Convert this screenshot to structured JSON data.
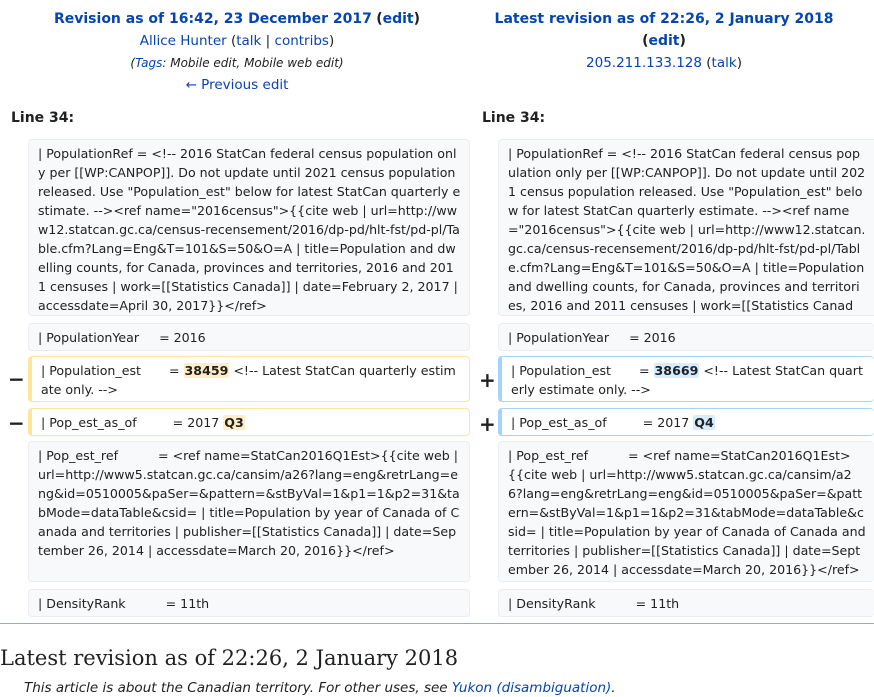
{
  "left": {
    "title": "Revision as of 16:42, 23 December 2017",
    "edit": "edit",
    "user": "Allice Hunter",
    "talk": "talk",
    "contribs": "contribs",
    "tags_label": "Tags",
    "tags": "Mobile edit, Mobile web edit",
    "prev": "← Previous edit",
    "line": "Line 34:"
  },
  "right": {
    "title": "Latest revision as of 22:26, 2 January 2018",
    "edit": "edit",
    "user": "205.211.133.128",
    "talk": "talk",
    "line": "Line 34:"
  },
  "rows": {
    "r1": "| PopulationRef = <!-- 2016 StatCan federal census population only per [[WP:CANPOP]]. Do not update until 2021 census population released. Use \"Population_est\" below for latest StatCan quarterly estimate. --><ref name=\"2016census\">{{cite web | url=http://www12.statcan.gc.ca/census-recensement/2016/dp-pd/hlt-fst/pd-pl/Table.cfm?Lang=Eng&T=101&S=50&O=A | title=Population and dwelling counts, for Canada, provinces and territories, 2016 and 2011 censuses | work=[[Statistics Canada]] | date=February 2, 2017 | accessdate=April 30, 2017}}</ref>",
    "r2": "| PopulationYear     = 2016",
    "r3_pre": "| Population_est       = ",
    "r3_old": "38459",
    "r3_new": "38669",
    "r3_post": " <!-- Latest StatCan quarterly estimate only. -->",
    "r4_pre": "| Pop_est_as_of         = 2017 ",
    "r4_old": "Q3",
    "r4_new": "Q4",
    "r5": "| Pop_est_ref          = <ref name=StatCan2016Q1Est>{{cite web | url=http://www5.statcan.gc.ca/cansim/a26?lang=eng&retrLang=eng&id=0510005&paSer=&pattern=&stByVal=1&p1=1&p2=31&tabMode=dataTable&csid= | title=Population by year of Canada of Canada and territories | publisher=[[Statistics Canada]] | date=September 26, 2014 | accessdate=March 20, 2016}}</ref>",
    "r6": "| DensityRank          = 11th"
  },
  "signs": {
    "minus": "−",
    "plus": "+"
  },
  "footer": {
    "heading": "Latest revision as of 22:26, 2 January 2018",
    "hatnote_prefix": "This article is about the Canadian territory. For other uses, see ",
    "hatnote_link": "Yukon (disambiguation)",
    "hatnote_suffix": "."
  },
  "colors": {
    "link": "#0645ad",
    "deleted_border": "#ffe49c",
    "added_border": "#a3d3ff"
  }
}
